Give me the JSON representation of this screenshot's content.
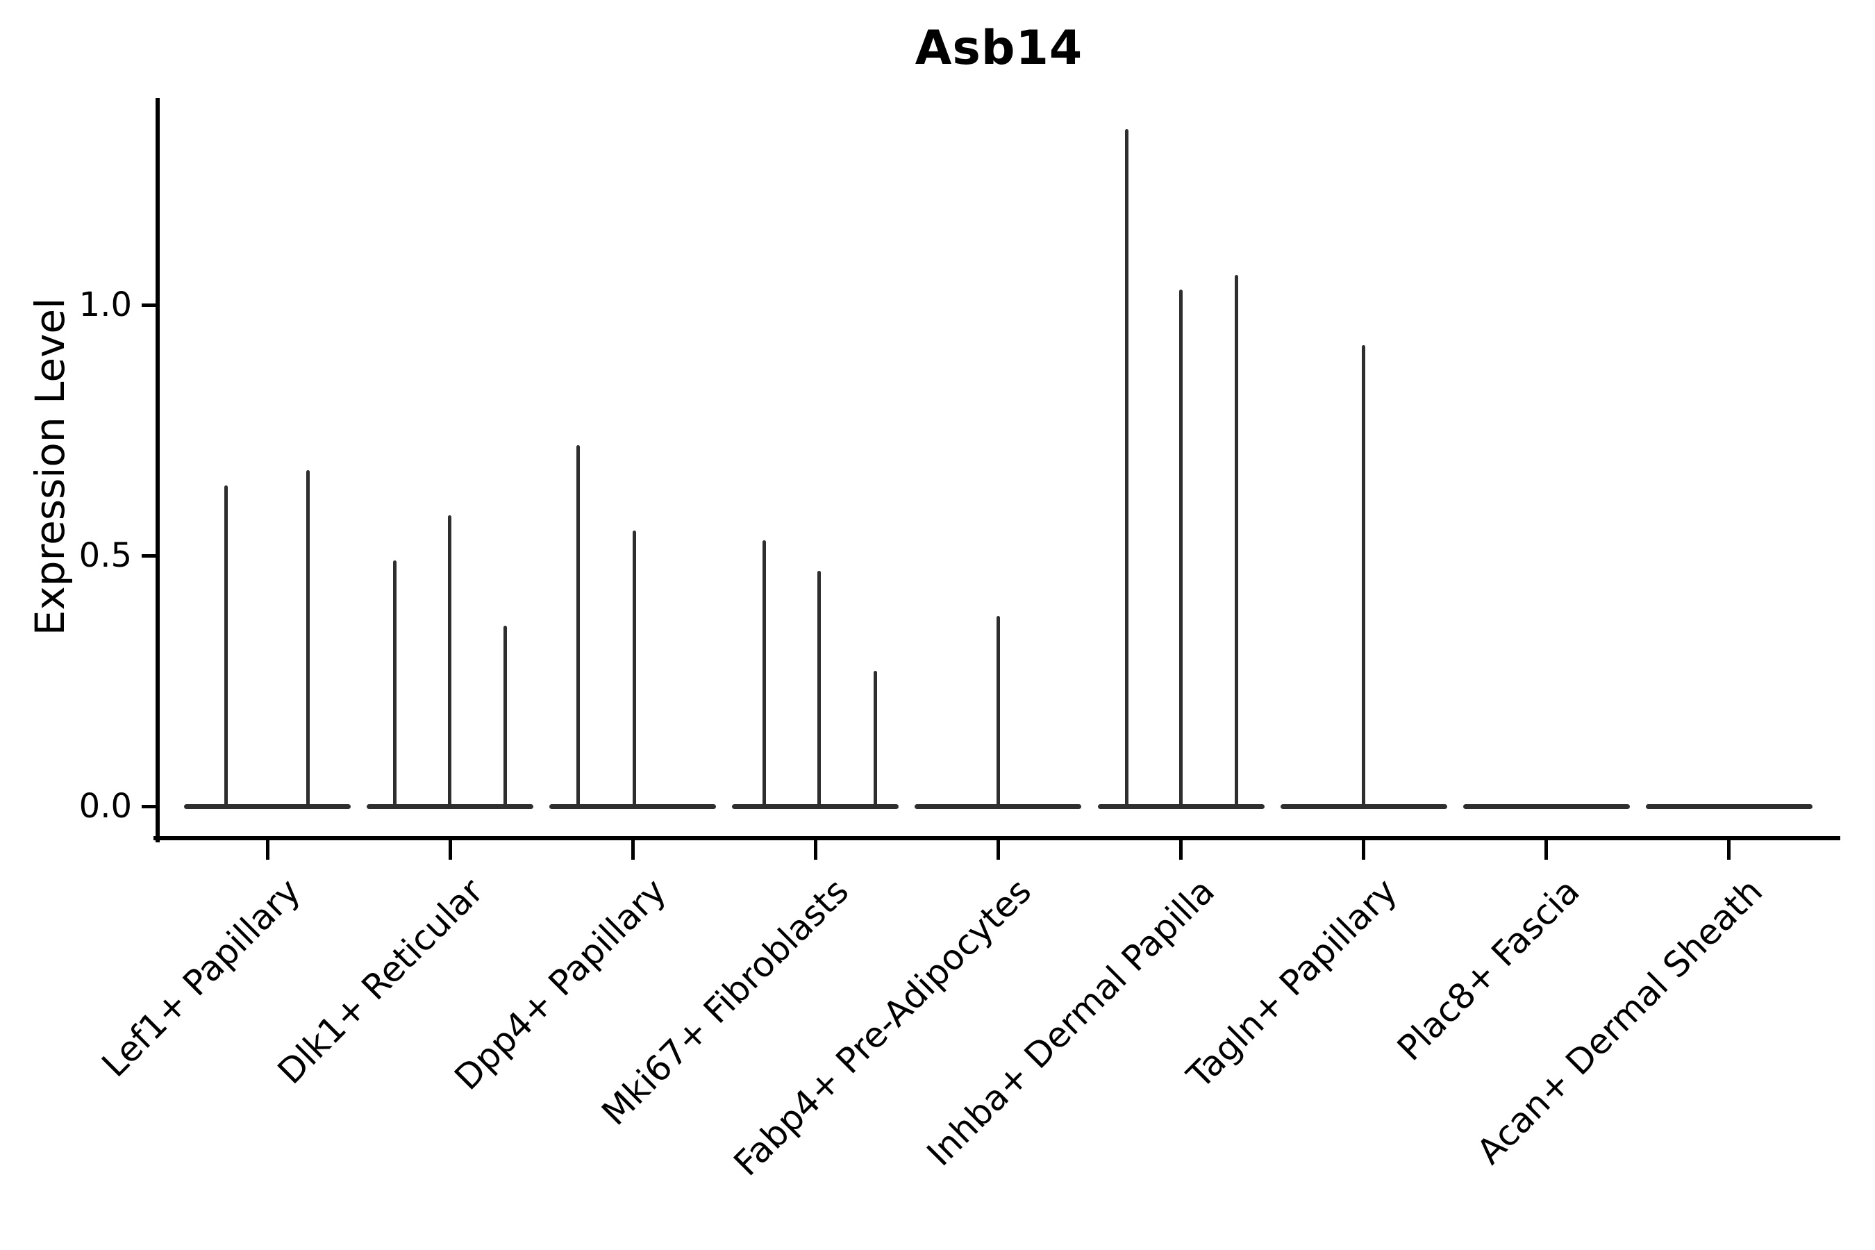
{
  "title": "Asb14",
  "axes": {
    "ylabel": "Expression Level",
    "ytick_labels": [
      "0.0",
      "0.5",
      "1.0"
    ]
  },
  "colors": {
    "violin": "#2e2e2e",
    "axis": "#000000",
    "text": "#000000",
    "background": "#ffffff"
  },
  "chart_data": {
    "type": "violin",
    "title": "Asb14",
    "xlabel": "",
    "ylabel": "Expression Level",
    "yticks": [
      0.0,
      0.5,
      1.0
    ],
    "ylim": [
      -0.06,
      1.41
    ],
    "grid": false,
    "legend": null,
    "baseline_value": 0.0,
    "categories": [
      "Lef1+ Papillary",
      "Dlk1+ Reticular",
      "Dpp4+ Papillary",
      "Mki67+ Fibroblasts",
      "Fabp4+ Pre-Adipocytes",
      "Inhba+ Dermal Papilla",
      "Tagln+ Papillary",
      "Plac8+ Fascia",
      "Acan+ Dermal Sheath"
    ],
    "series": [
      {
        "name": "Lef1+ Papillary",
        "spikes": [
          {
            "offset": -60,
            "peak": 0.64
          },
          {
            "offset": 58,
            "peak": 0.67
          }
        ]
      },
      {
        "name": "Dlk1+ Reticular",
        "spikes": [
          {
            "offset": -80,
            "peak": 0.49
          },
          {
            "offset": -1,
            "peak": 0.58
          },
          {
            "offset": 79,
            "peak": 0.36
          }
        ]
      },
      {
        "name": "Dpp4+ Papillary",
        "spikes": [
          {
            "offset": -79,
            "peak": 0.72
          },
          {
            "offset": 2,
            "peak": 0.55
          }
        ]
      },
      {
        "name": "Mki67+ Fibroblasts",
        "spikes": [
          {
            "offset": -74,
            "peak": 0.53
          },
          {
            "offset": 5,
            "peak": 0.47
          },
          {
            "offset": 86,
            "peak": 0.27
          }
        ]
      },
      {
        "name": "Fabp4+ Pre-Adipocytes",
        "spikes": [
          {
            "offset": 0,
            "peak": 0.38
          }
        ]
      },
      {
        "name": "Inhba+ Dermal Papilla",
        "spikes": [
          {
            "offset": -78,
            "peak": 1.35
          },
          {
            "offset": 0,
            "peak": 1.03
          },
          {
            "offset": 80,
            "peak": 1.06
          }
        ]
      },
      {
        "name": "Tagln+ Papillary",
        "spikes": [
          {
            "offset": 0,
            "peak": 0.92
          }
        ]
      },
      {
        "name": "Plac8+ Fascia",
        "spikes": []
      },
      {
        "name": "Acan+ Dermal Sheath",
        "spikes": []
      }
    ]
  }
}
